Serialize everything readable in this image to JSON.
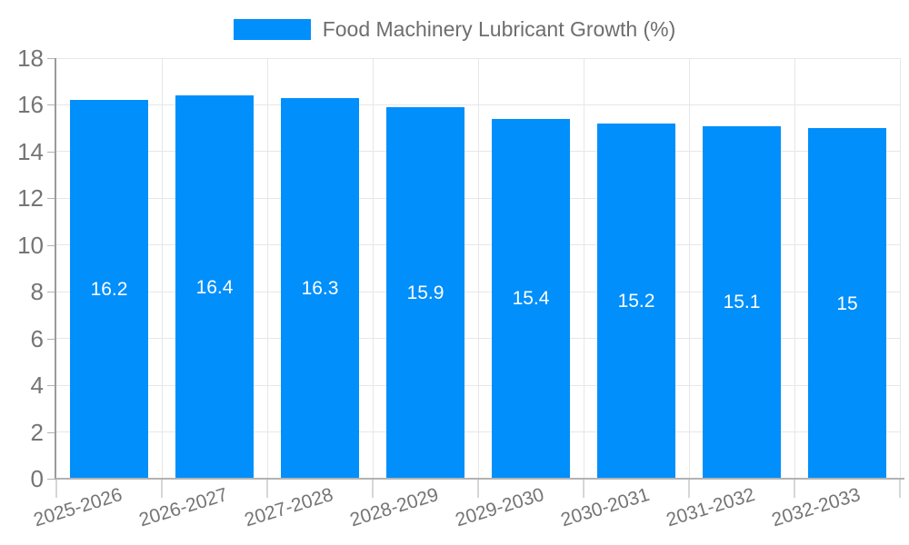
{
  "legend": {
    "label": "Food Machinery Lubricant Growth (%)"
  },
  "chart_data": {
    "type": "bar",
    "title": "Food Machinery Lubricant Growth (%)",
    "categories": [
      "2025-2026",
      "2026-2027",
      "2027-2028",
      "2028-2029",
      "2029-2030",
      "2030-2031",
      "2031-2032",
      "2032-2033"
    ],
    "series": [
      {
        "name": "Food Machinery Lubricant Growth (%)",
        "values": [
          16.2,
          16.4,
          16.3,
          15.9,
          15.4,
          15.2,
          15.1,
          15
        ]
      }
    ],
    "data_labels": [
      "16.2",
      "16.4",
      "16.3",
      "15.9",
      "15.4",
      "15.2",
      "15.1",
      "15"
    ],
    "xlabel": "",
    "ylabel": "",
    "ylim": [
      0,
      18
    ],
    "yticks": [
      0,
      2,
      4,
      6,
      8,
      10,
      12,
      14,
      16,
      18
    ],
    "grid": true,
    "legend_position": "top",
    "bar_color": "#008FFB",
    "data_label_color": "#FFFFFF",
    "x_label_rotation_deg": -17
  },
  "colors": {
    "bar": "#008FFB",
    "grid": "#e7e7e7",
    "y_axis_line": "#9a9a9a",
    "x_axis_line": "#b3b3b3",
    "tick": "#b3b3b3",
    "x_tick": "#d6d6d6",
    "axis_text": "#757575",
    "legend_text": "#6e6e6e",
    "value_text": "#ffffff",
    "background": "#ffffff"
  }
}
